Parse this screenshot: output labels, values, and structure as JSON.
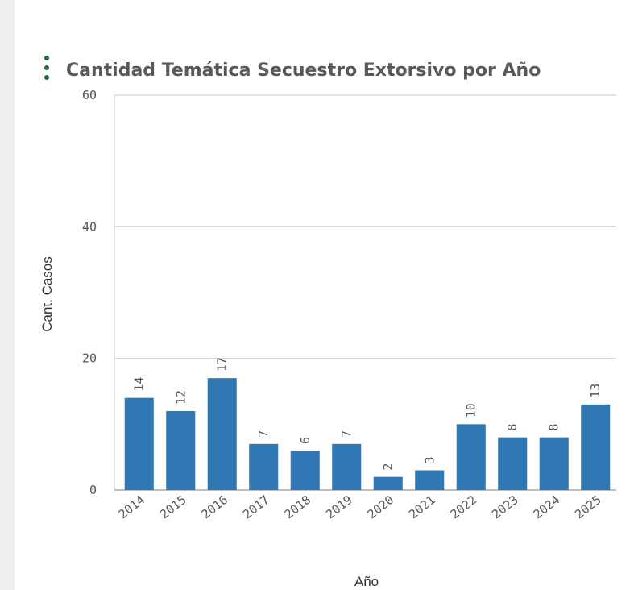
{
  "chart_data": {
    "type": "bar",
    "title": "Cantidad Temática Secuestro Extorsivo por Año",
    "x_label": "Año",
    "y_label": "Cant. Casos",
    "categories": [
      "2014",
      "2015",
      "2016",
      "2017",
      "2018",
      "2019",
      "2020",
      "2021",
      "2022",
      "2023",
      "2024",
      "2025"
    ],
    "values": [
      14,
      12,
      17,
      7,
      6,
      7,
      2,
      3,
      10,
      8,
      8,
      13
    ],
    "color": "#2f78b3",
    "ylim": [
      0,
      60
    ],
    "yticks": [
      0,
      20,
      40,
      60
    ],
    "grid": true
  }
}
